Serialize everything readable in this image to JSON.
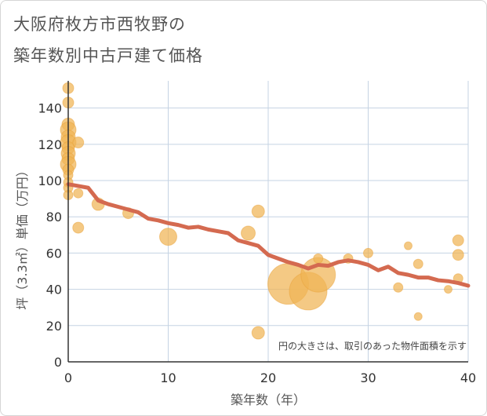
{
  "chart_data": {
    "type": "scatter",
    "title_lines": [
      "大阪府枚方市西牧野の",
      "築年数別中古戸建て価格"
    ],
    "xlabel": "築年数（年）",
    "ylabel": "坪（3.3㎡）単価（万円）",
    "xlim": [
      0,
      40
    ],
    "ylim": [
      0,
      155
    ],
    "xticks": [
      "0",
      "10",
      "20",
      "30",
      "40"
    ],
    "yticks": [
      "0",
      "20",
      "40",
      "60",
      "80",
      "100",
      "120",
      "140"
    ],
    "grid": true,
    "note": "円の大きさは、取引のあった物件面積を示す",
    "colors": {
      "bubble": "#f0b454",
      "line": "#d46a50",
      "grid": "#c5d3e3",
      "axis": "#333333"
    },
    "bubbles": [
      {
        "x": 0,
        "y": 151,
        "r": 7
      },
      {
        "x": 0,
        "y": 143,
        "r": 7
      },
      {
        "x": 0,
        "y": 131,
        "r": 8
      },
      {
        "x": 0,
        "y": 128,
        "r": 10
      },
      {
        "x": 0,
        "y": 124,
        "r": 9
      },
      {
        "x": 0,
        "y": 121,
        "r": 10
      },
      {
        "x": 0,
        "y": 118,
        "r": 8
      },
      {
        "x": 0,
        "y": 115,
        "r": 9
      },
      {
        "x": 0,
        "y": 112,
        "r": 8
      },
      {
        "x": 0,
        "y": 109,
        "r": 10
      },
      {
        "x": 0,
        "y": 106,
        "r": 7
      },
      {
        "x": 0,
        "y": 103,
        "r": 6
      },
      {
        "x": 0,
        "y": 99,
        "r": 6
      },
      {
        "x": 0,
        "y": 96,
        "r": 6
      },
      {
        "x": 0,
        "y": 92,
        "r": 6
      },
      {
        "x": 1,
        "y": 121,
        "r": 7
      },
      {
        "x": 1,
        "y": 93,
        "r": 6
      },
      {
        "x": 1,
        "y": 74,
        "r": 7
      },
      {
        "x": 3,
        "y": 87,
        "r": 8
      },
      {
        "x": 6,
        "y": 82,
        "r": 7
      },
      {
        "x": 10,
        "y": 69,
        "r": 11
      },
      {
        "x": 18,
        "y": 71,
        "r": 9
      },
      {
        "x": 19,
        "y": 83,
        "r": 8
      },
      {
        "x": 19,
        "y": 16,
        "r": 8
      },
      {
        "x": 22,
        "y": 43,
        "r": 26
      },
      {
        "x": 24,
        "y": 39,
        "r": 24
      },
      {
        "x": 25,
        "y": 48,
        "r": 22
      },
      {
        "x": 25,
        "y": 57,
        "r": 6
      },
      {
        "x": 28,
        "y": 57,
        "r": 6
      },
      {
        "x": 30,
        "y": 60,
        "r": 6
      },
      {
        "x": 33,
        "y": 41,
        "r": 6
      },
      {
        "x": 34,
        "y": 64,
        "r": 5
      },
      {
        "x": 35,
        "y": 54,
        "r": 6
      },
      {
        "x": 35,
        "y": 25,
        "r": 5
      },
      {
        "x": 38,
        "y": 40,
        "r": 5
      },
      {
        "x": 39,
        "y": 67,
        "r": 7
      },
      {
        "x": 39,
        "y": 59,
        "r": 7
      },
      {
        "x": 39,
        "y": 46,
        "r": 6
      }
    ],
    "trend_line": {
      "x": [
        0,
        1,
        2,
        3,
        4,
        5,
        6,
        7,
        8,
        9,
        10,
        11,
        12,
        13,
        14,
        15,
        16,
        17,
        18,
        19,
        20,
        21,
        22,
        23,
        24,
        25,
        26,
        27,
        28,
        29,
        30,
        31,
        32,
        33,
        34,
        35,
        36,
        37,
        38,
        39,
        40
      ],
      "y": [
        98,
        97,
        96,
        89,
        87,
        85.5,
        84,
        82.5,
        79,
        78,
        76.5,
        75.5,
        74,
        74.5,
        73,
        72,
        71,
        67,
        65.5,
        64,
        59,
        57,
        55,
        53.5,
        51.5,
        53.5,
        53,
        55,
        56,
        55,
        53.5,
        50.5,
        52.5,
        49,
        48,
        46.5,
        46.5,
        45,
        44.5,
        43.5,
        42
      ]
    }
  }
}
